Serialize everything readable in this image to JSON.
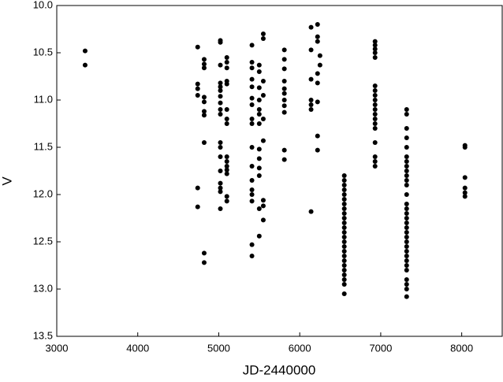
{
  "chart_data": {
    "type": "scatter",
    "x_label": "JD-2440000",
    "y_label": "V",
    "color": "#000000",
    "xlim": [
      3000,
      8500
    ],
    "xticks": [
      3000,
      4000,
      5000,
      6000,
      7000,
      8000
    ],
    "ylim": [
      13.5,
      10.0
    ],
    "yticks": [
      {
        "value": 10.0,
        "label": "10.0"
      },
      10.5,
      {
        "value": 11.0,
        "label": "11.0"
      },
      11.5,
      {
        "value": 12.0,
        "label": "12.0"
      },
      12.5,
      {
        "value": 13.0,
        "label": "13.0"
      },
      13.5
    ],
    "x": [
      3350,
      3350,
      4740,
      4740,
      4740,
      4740,
      4740,
      4740,
      4820,
      4820,
      4820,
      4820,
      4820,
      4820,
      4820,
      4820,
      4820,
      4820,
      5020,
      5020,
      5020,
      5020,
      5020,
      5020,
      5020,
      5020,
      5020,
      5020,
      5020,
      5020,
      5020,
      5020,
      5020,
      5020,
      5020,
      5020,
      5100,
      5100,
      5100,
      5100,
      5100,
      5100,
      5100,
      5100,
      5100,
      5100,
      5100,
      5100,
      5100,
      5100,
      5100,
      5410,
      5410,
      5410,
      5410,
      5410,
      5410,
      5410,
      5410,
      5410,
      5410,
      5410,
      5410,
      5410,
      5410,
      5410,
      5410,
      5410,
      5500,
      5500,
      5500,
      5500,
      5500,
      5500,
      5500,
      5500,
      5500,
      5500,
      5500,
      5500,
      5500,
      5550,
      5550,
      5550,
      5550,
      5550,
      5550,
      5550,
      5550,
      5550,
      5810,
      5810,
      5810,
      5810,
      5810,
      5810,
      5810,
      5810,
      5810,
      5810,
      5810,
      6140,
      6140,
      6140,
      6140,
      6140,
      6140,
      6140,
      6220,
      6220,
      6220,
      6220,
      6220,
      6220,
      6220,
      6220,
      6250,
      6250,
      6550,
      6550,
      6550,
      6550,
      6550,
      6550,
      6550,
      6550,
      6550,
      6550,
      6550,
      6550,
      6550,
      6550,
      6550,
      6550,
      6550,
      6550,
      6550,
      6550,
      6550,
      6550,
      6550,
      6550,
      6550,
      6930,
      6930,
      6930,
      6930,
      6930,
      6930,
      6930,
      6930,
      6930,
      6930,
      6930,
      6930,
      6930,
      6930,
      6930,
      6930,
      6930,
      6930,
      6930,
      7320,
      7320,
      7320,
      7320,
      7320,
      7320,
      7320,
      7320,
      7320,
      7320,
      7320,
      7320,
      7320,
      7320,
      7320,
      7320,
      7320,
      7320,
      7320,
      7320,
      7320,
      7320,
      7320,
      7320,
      7320,
      7320,
      7320,
      7320,
      7320,
      7320,
      7320,
      7320,
      8040,
      8040,
      8040,
      8040,
      8040,
      8040
    ],
    "values": [
      10.48,
      10.63,
      10.44,
      10.83,
      10.88,
      10.95,
      11.93,
      12.13,
      10.57,
      10.62,
      10.66,
      10.97,
      11.02,
      11.12,
      11.16,
      11.45,
      12.62,
      12.72,
      10.37,
      10.39,
      10.63,
      10.82,
      10.86,
      10.9,
      10.96,
      11.03,
      11.1,
      11.15,
      11.45,
      11.5,
      11.6,
      11.75,
      11.88,
      11.93,
      11.97,
      12.15,
      10.55,
      10.6,
      10.66,
      10.8,
      10.83,
      11.1,
      11.2,
      11.25,
      11.6,
      11.65,
      11.7,
      11.74,
      11.78,
      12.02,
      12.07,
      10.42,
      10.6,
      10.66,
      10.78,
      10.86,
      10.98,
      11.05,
      11.2,
      11.25,
      11.5,
      11.7,
      11.85,
      11.95,
      12.0,
      12.07,
      12.53,
      12.65,
      10.63,
      10.7,
      10.87,
      11.0,
      11.1,
      11.15,
      11.25,
      11.52,
      11.62,
      11.72,
      11.8,
      12.15,
      12.44,
      10.3,
      10.35,
      10.8,
      10.95,
      11.2,
      11.43,
      12.06,
      12.12,
      12.27,
      10.47,
      10.57,
      10.67,
      10.8,
      10.88,
      10.93,
      11.0,
      11.06,
      11.13,
      11.53,
      11.63,
      10.23,
      10.47,
      10.78,
      11.0,
      11.05,
      11.1,
      12.18,
      10.2,
      10.33,
      10.38,
      10.72,
      10.82,
      11.02,
      11.38,
      11.53,
      10.53,
      10.63,
      11.8,
      11.85,
      11.9,
      11.95,
      12.0,
      12.05,
      12.1,
      12.15,
      12.2,
      12.25,
      12.3,
      12.35,
      12.4,
      12.45,
      12.5,
      12.55,
      12.6,
      12.65,
      12.7,
      12.75,
      12.8,
      12.85,
      12.9,
      12.95,
      13.05,
      10.38,
      10.42,
      10.46,
      10.5,
      10.55,
      10.85,
      10.9,
      10.95,
      11.0,
      11.05,
      11.1,
      11.15,
      11.2,
      11.25,
      11.3,
      11.45,
      11.6,
      11.65,
      11.7,
      11.1,
      11.15,
      11.3,
      11.4,
      11.5,
      11.6,
      11.65,
      11.7,
      11.75,
      11.8,
      11.85,
      11.9,
      12.0,
      12.1,
      12.15,
      12.2,
      12.25,
      12.3,
      12.35,
      12.4,
      12.45,
      12.5,
      12.55,
      12.6,
      12.65,
      12.7,
      12.75,
      12.8,
      12.9,
      12.95,
      13.0,
      13.08,
      11.48,
      11.5,
      11.82,
      11.93,
      11.98,
      12.02
    ]
  }
}
